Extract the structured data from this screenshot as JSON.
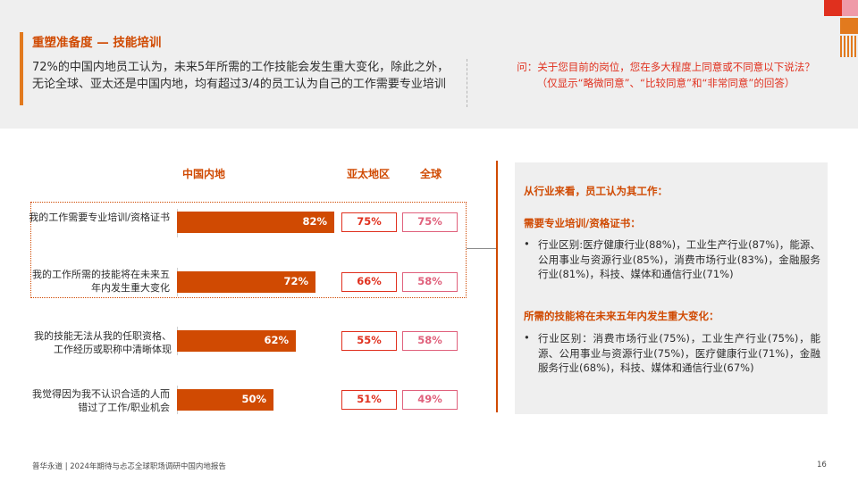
{
  "header": {
    "title": "重塑准备度 — 技能培训",
    "headline": "72%的中国内地员工认为，未来5年所需的工作技能会发生重大变化，除此之外，无论全球、亚太还是中国内地，均有超过3/4的员工认为自己的工作需要专业培训",
    "question_line1": "问：关于您目前的岗位，您在多大程度上同意或不同意以下说法？",
    "question_line2": "（仅显示“略微同意”、“比较同意”和“非常同意”的回答）"
  },
  "chart": {
    "columns": {
      "mainland": "中国内地",
      "apac": "亚太地区",
      "global": "全球"
    },
    "rows": [
      {
        "label": "我的工作需要专业培训/资格证书",
        "mainland": "82%",
        "mainland_value": 82,
        "apac": "75%",
        "global": "75%"
      },
      {
        "label": "我的工作所需的技能将在未来五年内发生重大变化",
        "mainland": "72%",
        "mainland_value": 72,
        "apac": "66%",
        "global": "58%"
      },
      {
        "label": "我的技能无法从我的任职资格、工作经历或职称中清晰体现",
        "mainland": "62%",
        "mainland_value": 62,
        "apac": "55%",
        "global": "58%"
      },
      {
        "label": "我觉得因为我不认识合适的人而错过了工作/职业机会",
        "mainland": "50%",
        "mainland_value": 50,
        "apac": "51%",
        "global": "49%"
      }
    ],
    "bar_color": "#d04a02"
  },
  "panel": {
    "heading": "从行业来看，员工认为其工作：",
    "section1_title": "需要专业培训/资格证书：",
    "section1_text": "行业区别:医疗健康行业(88%)，工业生产行业(87%)，能源、公用事业与资源行业(85%)，消费市场行业(83%)，金融服务行业(81%)，科技、媒体和通信行业(71%)",
    "section2_title": "所需的技能将在未来五年内发生重大变化：",
    "section2_text": "行业区别：消费市场行业(75%)，工业生产行业(75%)，能源、公用事业与资源行业(75%)，医疗健康行业(71%)，金融服务行业(68%)，科技、媒体和通信行业(67%)",
    "bullet_symbol": "•"
  },
  "footer": {
    "source": "普华永道 | 2024年期待与忐忑全球职场调研中国内地报告",
    "page": "16"
  },
  "colors": {
    "accent": "#d04a02",
    "red": "#e0301e",
    "pink": "#e0617c",
    "panel_bg": "#efefef"
  }
}
